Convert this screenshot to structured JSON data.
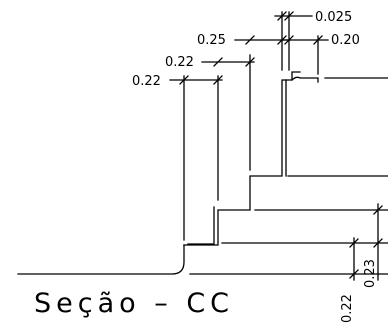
{
  "drawing": {
    "title": "Seção – CC",
    "dimensions": {
      "top_small": "0.025",
      "top_right": "0.20",
      "step_1": "0.25",
      "step_2": "0.22",
      "step_3": "0.22",
      "right_upper": "0.23",
      "right_lower": "0.22"
    },
    "colors": {
      "line": "#000000",
      "background": "#ffffff"
    }
  }
}
